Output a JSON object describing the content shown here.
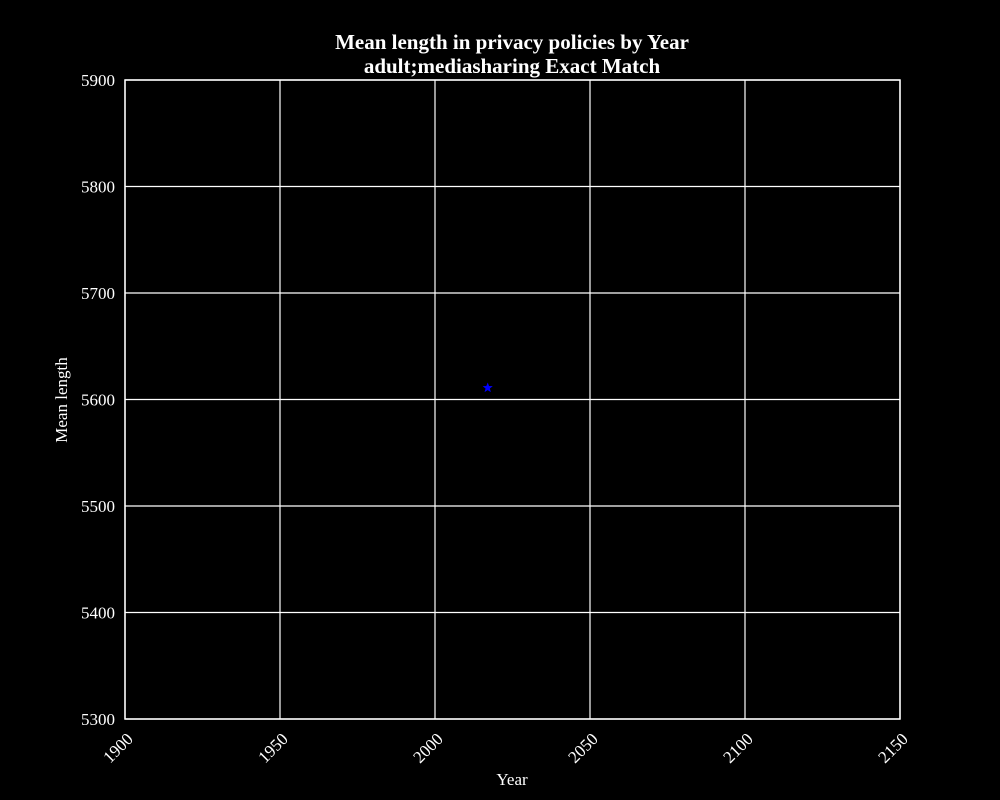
{
  "chart_data": {
    "type": "scatter",
    "title": "Mean length in privacy policies by Year",
    "subtitle": "adult;mediasharing Exact Match",
    "xlabel": "Year",
    "ylabel": "Mean length",
    "xlim": [
      1900,
      2150
    ],
    "ylim": [
      5300,
      5900
    ],
    "xticks": [
      1900,
      1950,
      2000,
      2050,
      2100,
      2150
    ],
    "yticks": [
      5300,
      5400,
      5500,
      5600,
      5700,
      5800,
      5900
    ],
    "grid": true,
    "series": [
      {
        "name": "Mean length",
        "marker": "star",
        "color": "#0000ff",
        "points": [
          {
            "x": 2017,
            "y": 5611
          }
        ]
      }
    ]
  }
}
